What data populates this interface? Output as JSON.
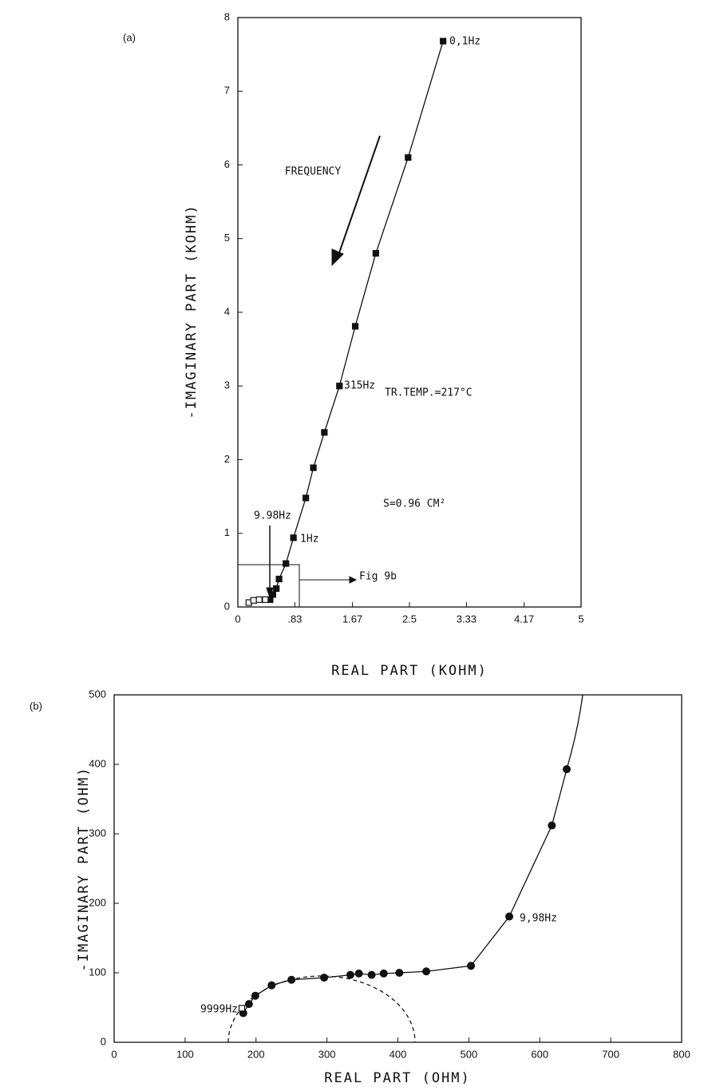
{
  "chart_data": [
    {
      "type": "scatter",
      "panel_label": "(a)",
      "xlabel": "REAL PART  (KOHM)",
      "ylabel": "-IMAGINARY PART  (KOHM)",
      "xlim": [
        0,
        5
      ],
      "ylim": [
        0,
        8
      ],
      "xticks": [
        0,
        {
          "value": 0.83,
          "label": ".83"
        },
        1.67,
        2.5,
        3.33,
        4.17,
        5
      ],
      "yticks": [
        0,
        1,
        2,
        3,
        4,
        5,
        6,
        7,
        8
      ],
      "series": [
        {
          "marker": "square-filled",
          "line": true,
          "color": "#111111",
          "x": [
            2.99,
            2.48,
            2.01,
            1.71,
            1.48,
            1.26,
            1.1,
            0.99,
            0.81,
            0.7,
            0.6,
            0.56,
            0.51,
            0.47
          ],
          "values": [
            7.68,
            6.1,
            4.8,
            3.81,
            3.0,
            2.37,
            1.89,
            1.48,
            0.94,
            0.59,
            0.38,
            0.25,
            0.17,
            0.1
          ]
        },
        {
          "marker": "square-open",
          "line": false,
          "color": "#111111",
          "x": [
            0.16,
            0.23,
            0.31,
            0.4
          ],
          "values": [
            0.06,
            0.09,
            0.1,
            0.1
          ]
        }
      ],
      "annotations": [
        "0,1Hz",
        "315Hz",
        "1Hz",
        "9.98Hz",
        "FREQUENCY",
        "TR.TEMP.=217°C",
        "S=0.96 CM²",
        "Fig 9b"
      ]
    },
    {
      "type": "scatter",
      "panel_label": "(b)",
      "xlabel": "REAL PART  (OHM)",
      "ylabel": "-IMAGINARY PART  (OHM)",
      "xlim": [
        0,
        800
      ],
      "ylim": [
        0,
        500
      ],
      "xticks": [
        0,
        100,
        200,
        300,
        400,
        500,
        600,
        700,
        800
      ],
      "yticks": [
        0,
        100,
        200,
        300,
        400,
        500
      ],
      "series": [
        {
          "marker": "circle-filled",
          "line": true,
          "color": "#111111",
          "x": [
            182,
            190,
            199,
            222,
            250,
            296,
            333,
            345,
            363,
            380,
            402,
            440,
            503,
            557,
            617,
            638
          ],
          "values": [
            42,
            55,
            67,
            82,
            90,
            93,
            97,
            99,
            97,
            99,
            100,
            102,
            110,
            181,
            312,
            393
          ]
        },
        {
          "marker": "square-open",
          "line": false,
          "color": "#111111",
          "x": [
            180
          ],
          "values": [
            49
          ]
        }
      ],
      "annotations": [
        "9,98Hz",
        "9999Hz"
      ]
    }
  ]
}
